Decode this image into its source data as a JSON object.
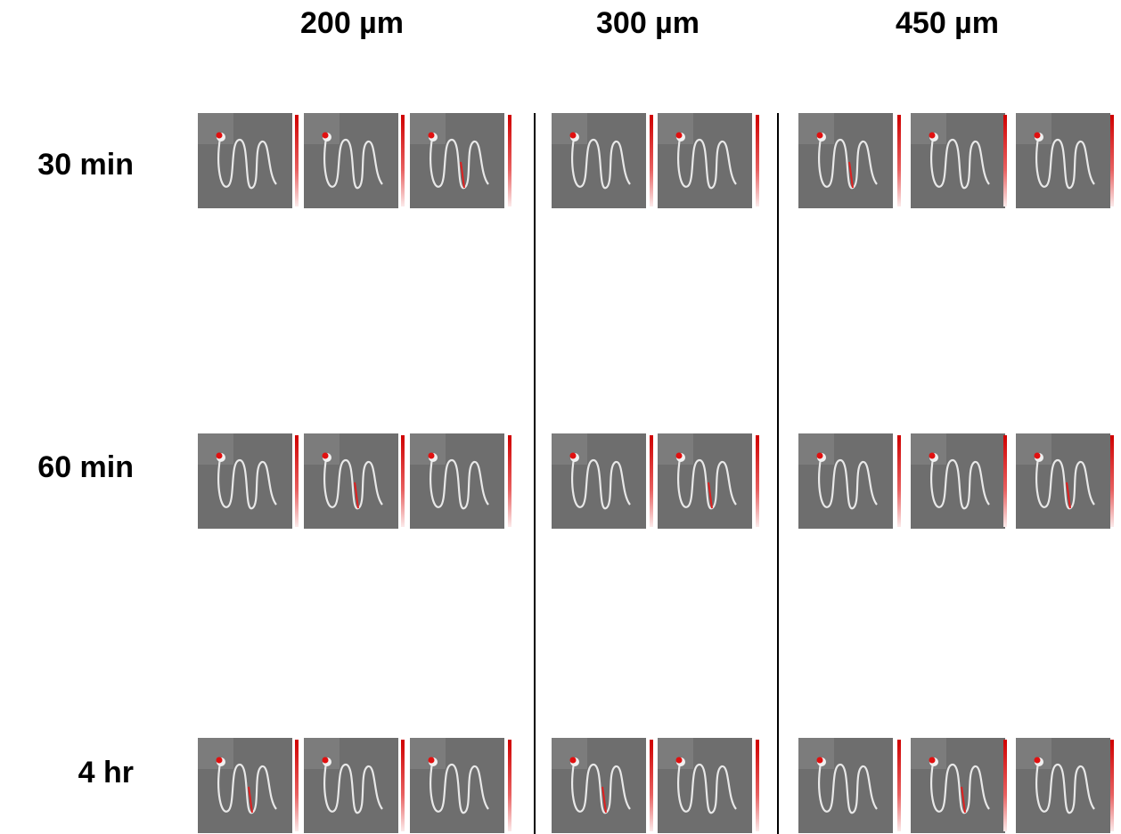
{
  "columns": [
    "200 µm",
    "300 µm",
    "450 µm"
  ],
  "rows": [
    "30 min",
    "60 min",
    "4 hr"
  ]
}
